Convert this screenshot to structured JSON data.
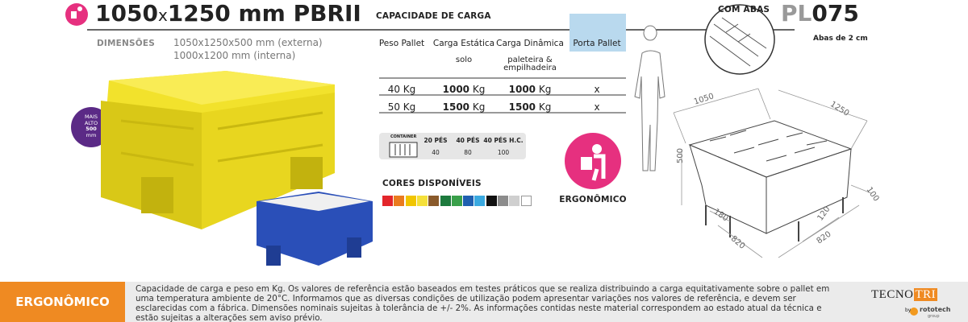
{
  "header": {
    "size_width": "1050",
    "size_x": "x",
    "size_length": "1250 mm",
    "model": "PBRII",
    "capacity_title": "CAPACIDADE DE CARGA",
    "variant": "COM ABAS",
    "code_prefix": "PL",
    "code_number": "075",
    "variant_note": "Abas de 2 cm"
  },
  "dimensions": {
    "label": "DIMENSÕES",
    "external": "1050x1250x500 mm (externa)",
    "internal": "1000x1200 mm (interna)"
  },
  "badge": {
    "line1": "MAIS",
    "line2": "ALTO",
    "line3": "500",
    "line4": "mm"
  },
  "table": {
    "headers": [
      "Peso Pallet",
      "Carga Estática",
      "Carga Dinâmica",
      "Porta Pallet"
    ],
    "notes": {
      "1": "solo",
      "2": "paleteira & empilhadeira"
    },
    "rows": [
      [
        {
          "text": "40 Kg"
        },
        {
          "strong": "1000",
          "unit": "Kg"
        },
        {
          "strong": "1000",
          "unit": "Kg"
        },
        {
          "text": "x"
        }
      ],
      [
        {
          "text": "50 Kg"
        },
        {
          "strong": "1500",
          "unit": "Kg"
        },
        {
          "strong": "1500",
          "unit": "Kg"
        },
        {
          "text": "x"
        }
      ]
    ]
  },
  "container": {
    "label": "CONTAINER",
    "headers": [
      "20 PÉS",
      "40 PÉS",
      "40 PÉS H.C."
    ],
    "values": [
      "40",
      "80",
      "100"
    ]
  },
  "colors": {
    "title": "CORES DISPONÍVEIS",
    "swatches": [
      "#e3262b",
      "#ea7b1f",
      "#f1c500",
      "#f5e03a",
      "#8a5a2b",
      "#1d7a3d",
      "#3aa04a",
      "#1f5fb0",
      "#3aa9e0",
      "#111111",
      "#8c8c8c",
      "#cfcfcf",
      "#ffffff"
    ]
  },
  "ergonomic_label": "ERGONÔMICO",
  "drawing": {
    "width": "1050",
    "length": "1250",
    "height": "500",
    "foot": "100",
    "gap_a": "180",
    "gap_b": "120",
    "span_a": "820",
    "span_b": "820"
  },
  "footer": {
    "tag": "ERGONÔMICO",
    "disclaimer": "Capacidade de carga e peso em Kg. Os valores de referência estão baseados em testes práticos que se realiza distribuindo a carga equitativamente sobre o pallet em uma temperatura ambiente de 20°C. Informamos que as diversas condições de utilização podem apresentar variações nos valores de referência, e devem ser esclarecidas com a fábrica. Dimensões nominais sujeitas à tolerância de +/- 2%. As informações contidas neste material correspondem ao estado atual da técnica e estão sujeitas a alterações sem aviso prévio.",
    "brand_a": "TECNO",
    "brand_b": "TRI",
    "by": "by",
    "partner": "rototech",
    "partner_sub": "group"
  }
}
